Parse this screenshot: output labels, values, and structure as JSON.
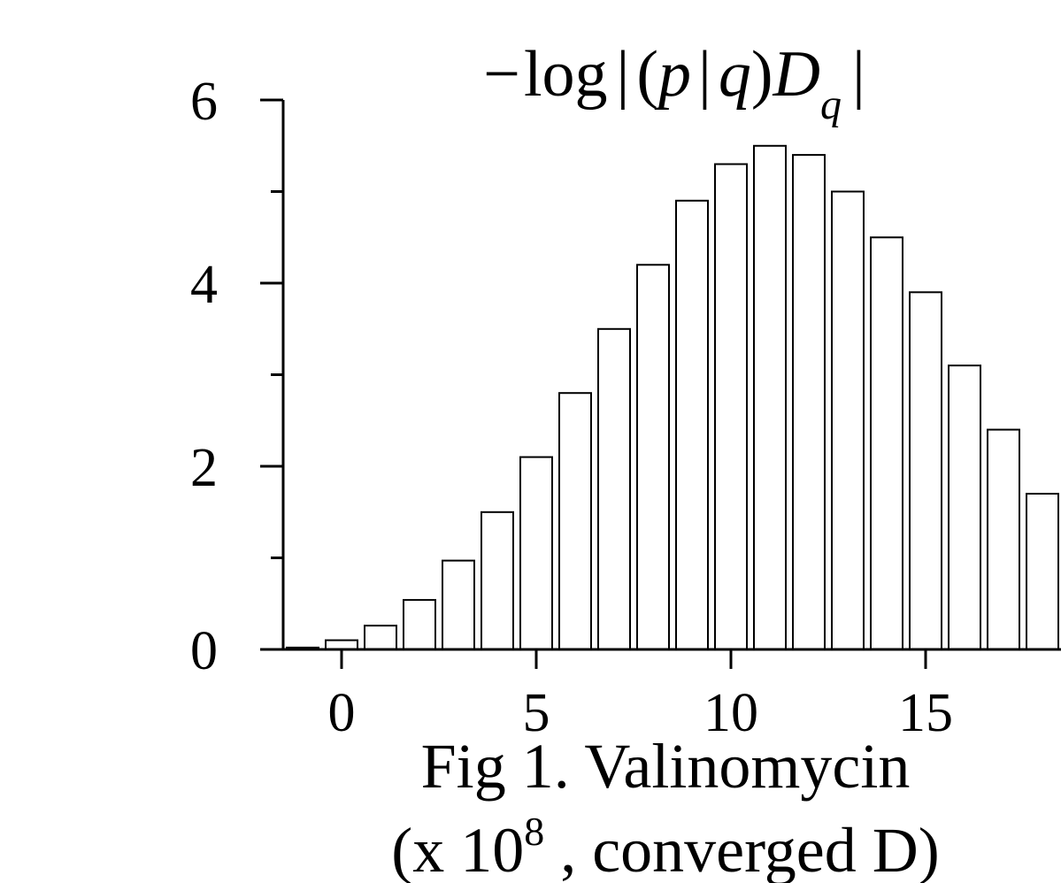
{
  "chart_data": {
    "type": "bar",
    "title": {
      "minus": "−",
      "log": "log",
      "bar1": "|",
      "open": "(",
      "p": "p",
      "bar2": "|",
      "q": "q",
      "close": ")",
      "D": "D",
      "subscript": "q",
      "bar3": "|"
    },
    "x": [
      -1,
      0,
      1,
      2,
      3,
      4,
      5,
      6,
      7,
      8,
      9,
      10,
      11,
      12,
      13,
      14,
      15,
      16,
      17,
      18
    ],
    "values": [
      0.02,
      0.1,
      0.26,
      0.54,
      0.97,
      1.5,
      2.1,
      2.8,
      3.5,
      4.2,
      4.9,
      5.3,
      5.5,
      5.4,
      5.0,
      4.5,
      3.9,
      3.1,
      2.4,
      1.7
    ],
    "xlim": [
      -1.5,
      18.5
    ],
    "ylim": [
      0,
      6
    ],
    "x_ticks": [
      0,
      5,
      10,
      15
    ],
    "x_tick_labels": [
      "0",
      "5",
      "10",
      "15"
    ],
    "y_ticks": [
      0,
      2,
      4,
      6
    ],
    "y_tick_labels": [
      "0",
      "2",
      "4",
      "6"
    ],
    "y_minor_ticks": [
      1,
      3,
      5
    ],
    "bar_fill": "#ffffff",
    "bar_stroke": "#000000",
    "grid": false
  },
  "caption": {
    "line1": "Fig 1. Valinomycin",
    "line2_prefix": "(x 10",
    "line2_exponent": "8",
    "line2_suffix": " , converged D)"
  }
}
